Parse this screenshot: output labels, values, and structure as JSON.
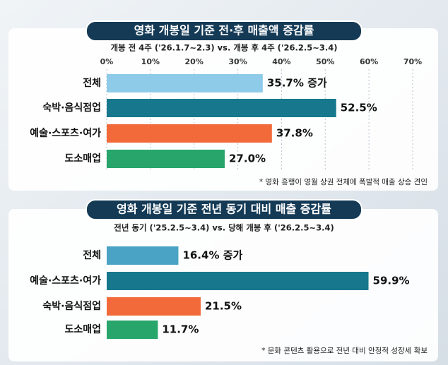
{
  "chart_data": [
    {
      "type": "barh",
      "title": "영화 개봉일 기준 전·후 매출액 증감률",
      "subtitle": "개봉 전 4주 ('26.1.7~2.3) vs. 개봉 후 4주 ('26.2.5~3.4)",
      "categories": [
        "전체",
        "숙박·음식점업",
        "예술·스포츠·여가",
        "도소매업"
      ],
      "values": [
        35.7,
        52.5,
        37.8,
        27.0
      ],
      "value_labels": [
        "35.7% 증가",
        "52.5%",
        "37.8%",
        "27.0%"
      ],
      "colors": [
        "#8ecbe9",
        "#17788d",
        "#f26a3a",
        "#27a56b"
      ],
      "xlim": [
        0,
        70
      ],
      "xticks": [
        {
          "value": 0,
          "label": "0%"
        },
        {
          "value": 10,
          "label": "10%"
        },
        {
          "value": 20,
          "label": "20%"
        },
        {
          "value": 30,
          "label": "30%"
        },
        {
          "value": 40,
          "label": "40%"
        },
        {
          "value": 50,
          "label": "50%"
        },
        {
          "value": 60,
          "label": "60%"
        },
        {
          "value": 70,
          "label": "70%"
        }
      ],
      "grid": true,
      "annotation": "* 영화 흥행이 영월 상권 전체에 폭발적 매출 상승 견인"
    },
    {
      "type": "barh",
      "title": "영화 개봉일 기준 전년 동기 대비 매출 증감률",
      "subtitle": "전년 동기 ('25.2.5~3.4) vs. 당해 개봉 후 ('26.2.5~3.4)",
      "categories": [
        "전체",
        "예술·스포츠·여가",
        "숙박·음식점업",
        "도소매업"
      ],
      "values": [
        16.4,
        59.9,
        21.5,
        11.7
      ],
      "value_labels": [
        "16.4% 증가",
        "59.9%",
        "21.5%",
        "11.7%"
      ],
      "colors": [
        "#4aa3c4",
        "#17788d",
        "#f26a3a",
        "#27a56b"
      ],
      "xlim": [
        0,
        70
      ],
      "annotation": "* 문화 콘텐츠 활용으로 전년 대비 안정적 성장세 확보"
    }
  ]
}
